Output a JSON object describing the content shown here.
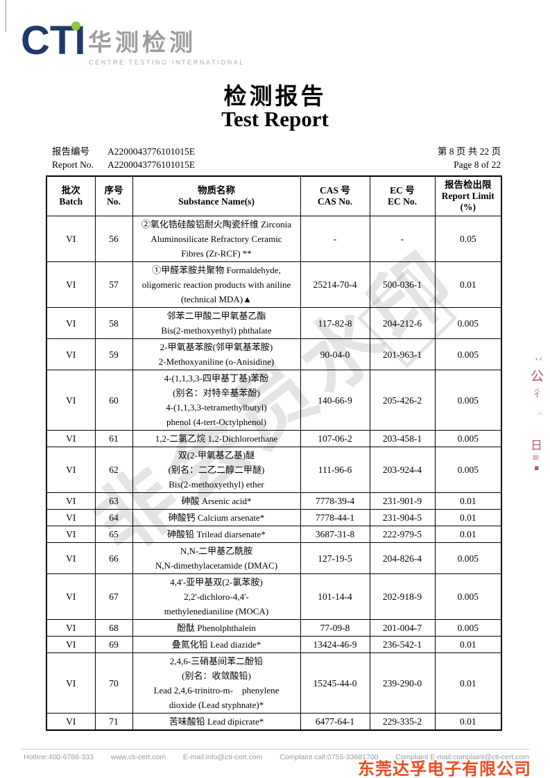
{
  "logo": {
    "cti": "CTI",
    "cn": "华测检测",
    "en": "CENTRE TESTING INTERNATIONAL",
    "navy_color": "#20386b",
    "green_dot_color": "#8dc63f"
  },
  "title": {
    "cn": "检测报告",
    "en": "Test Report"
  },
  "report": {
    "no_label_cn": "报告编号",
    "no_label_en": "Report No.",
    "no_value_line1": "A2200043776101015E",
    "no_value_line2": "A2200043776101015E",
    "page_cn": "第 8 页  共 22 页",
    "page_en": "Page 8 of 22"
  },
  "table": {
    "headers": [
      {
        "cn": "批次",
        "en": "Batch"
      },
      {
        "cn": "序号",
        "en": "No."
      },
      {
        "cn": "物质名称",
        "en": "Substance Name(s)"
      },
      {
        "cn": "CAS 号",
        "en": "CAS No."
      },
      {
        "cn": "EC 号",
        "en": "EC No."
      },
      {
        "cn": "报告检出限",
        "en": "Report Limit",
        "unit": "(%)"
      }
    ],
    "rows": [
      {
        "batch": "VI",
        "no": "56",
        "substance": [
          "②氧化锆硅酸铝耐火陶瓷纤维 Zirconia",
          "Aluminosilicate Refractory Ceramic",
          "Fibres (Zr-RCF) **"
        ],
        "cas": "-",
        "ec": "-",
        "limit": "0.05"
      },
      {
        "batch": "VI",
        "no": "57",
        "substance": [
          "①甲醛苯胺共聚物 Formaldehyde,",
          "oligomeric reaction products with aniline",
          "(technical MDA)▲"
        ],
        "cas": "25214-70-4",
        "ec": "500-036-1",
        "limit": "0.01"
      },
      {
        "batch": "VI",
        "no": "58",
        "substance": [
          "邻苯二甲酸二甲氧基乙酯",
          "Bis(2-methoxyethyl) phthalate"
        ],
        "cas": "117-82-8",
        "ec": "204-212-6",
        "limit": "0.005"
      },
      {
        "batch": "VI",
        "no": "59",
        "substance": [
          "2-甲氧基苯胺(邻甲氧基苯胺)",
          "2-Methoxyaniline (o-Anisidine)"
        ],
        "cas": "90-04-0",
        "ec": "201-963-1",
        "limit": "0.005"
      },
      {
        "batch": "VI",
        "no": "60",
        "substance": [
          "4-(1,1,3,3-四甲基丁基)苯酚",
          "(别名：对特辛基苯酚)",
          "4-(1,1,3,3-tetramethylbutyl)",
          "phenol (4-tert-Octylphenol)"
        ],
        "cas": "140-66-9",
        "ec": "205-426-2",
        "limit": "0.005"
      },
      {
        "batch": "VI",
        "no": "61",
        "substance": [
          "1,2-二氯乙烷 1,2-Dichloroethane"
        ],
        "cas": "107-06-2",
        "ec": "203-458-1",
        "limit": "0.005"
      },
      {
        "batch": "VI",
        "no": "62",
        "substance": [
          "双(2-甲氧基乙基)醚",
          "(别名：二乙二醇二甲醚)",
          "Bis(2-methoxyethyl) ether"
        ],
        "cas": "111-96-6",
        "ec": "203-924-4",
        "limit": "0.005"
      },
      {
        "batch": "VI",
        "no": "63",
        "substance": [
          "砷酸 Arsenic acid*"
        ],
        "cas": "7778-39-4",
        "ec": "231-901-9",
        "limit": "0.01"
      },
      {
        "batch": "VI",
        "no": "64",
        "substance": [
          "砷酸钙 Calcium arsenate*"
        ],
        "cas": "7778-44-1",
        "ec": "231-904-5",
        "limit": "0.01"
      },
      {
        "batch": "VI",
        "no": "65",
        "substance": [
          "砷酸铅 Trilead diarsenate*"
        ],
        "cas": "3687-31-8",
        "ec": "222-979-5",
        "limit": "0.01"
      },
      {
        "batch": "VI",
        "no": "66",
        "substance": [
          "N,N-二甲基乙酰胺",
          "N,N-dimethylacetamide (DMAC)"
        ],
        "cas": "127-19-5",
        "ec": "204-826-4",
        "limit": "0.005"
      },
      {
        "batch": "VI",
        "no": "67",
        "substance": [
          "4,4'-亚甲基双(2-氯苯胺)",
          "2,2'-dichloro-4,4'-",
          "methylenedianiline (MOCA)"
        ],
        "cas": "101-14-4",
        "ec": "202-918-9",
        "limit": "0.005"
      },
      {
        "batch": "VI",
        "no": "68",
        "substance": [
          "酚酞 Phenolphthalein"
        ],
        "cas": "77-09-8",
        "ec": "201-004-7",
        "limit": "0.005"
      },
      {
        "batch": "VI",
        "no": "69",
        "substance": [
          "叠氮化铅 Lead diazide*"
        ],
        "cas": "13424-46-9",
        "ec": "236-542-1",
        "limit": "0.01"
      },
      {
        "batch": "VI",
        "no": "70",
        "substance": [
          "2,4,6-三硝基间苯二酚铅",
          "(别名：收敛酸铅)",
          "Lead 2,4,6-trinitro-m-　phenylene",
          "dioxide (Lead styphnate)*"
        ],
        "cas": "15245-44-0",
        "ec": "239-290-0",
        "limit": "0.01"
      },
      {
        "batch": "VI",
        "no": "71",
        "substance": [
          "苦味酸铅 Lead dipicrate*"
        ],
        "cas": "6477-64-1",
        "ec": "229-335-2",
        "limit": "0.01"
      }
    ]
  },
  "watermark": {
    "text": "非会员水印"
  },
  "edge_stamp_fragments": [
    "丷",
    "公",
    "彳",
    "丶",
    "日",
    "≡",
    "▪"
  ],
  "company_overlay": {
    "text": "东莞达孚电子有限公司",
    "color": "#ef4a1f"
  },
  "footer": {
    "items": [
      "Hotline:400-6788-333",
      "www.cti-cert.com",
      "E-mail:info@cti-cert.com",
      "Complaint call:0755-33681700",
      "Complaint E-mail:complaint@cti-cert.com"
    ]
  }
}
